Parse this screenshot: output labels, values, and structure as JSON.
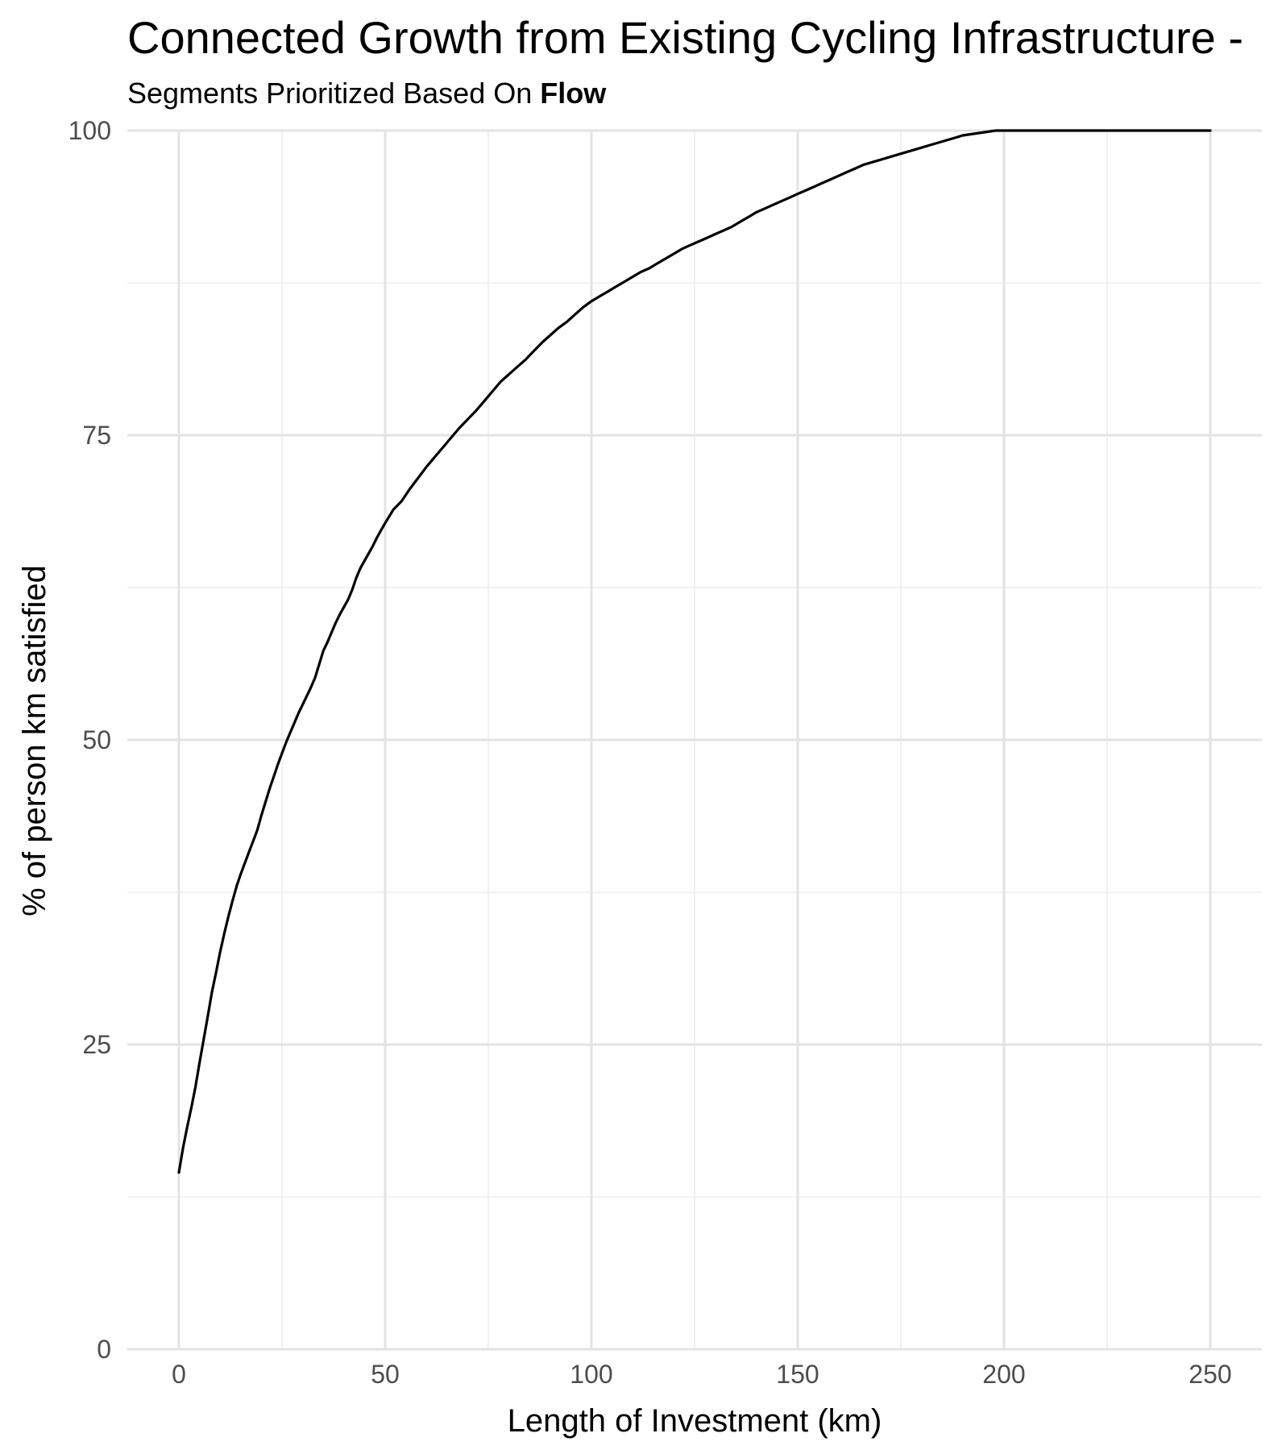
{
  "chart_data": {
    "type": "line",
    "title": "Connected Growth from Existing Cycling Infrastructure -",
    "subtitle": {
      "prefix": "Segments Prioritized Based On ",
      "emphasis": "Flow"
    },
    "xlabel": "Length of Investment (km)",
    "ylabel": "% of person km satisfied",
    "xlim": [
      -12.5,
      262.5
    ],
    "ylim": [
      0,
      100
    ],
    "x_ticks": [
      0,
      50,
      100,
      150,
      200,
      250
    ],
    "y_ticks": [
      0,
      25,
      50,
      75,
      100
    ],
    "x_tick_labels": [
      "0",
      "50",
      "100",
      "150",
      "200",
      "250"
    ],
    "y_tick_labels": [
      "0",
      "25",
      "50",
      "75",
      "100"
    ],
    "grid": true,
    "line_color": "#000000",
    "series": [
      {
        "x": [
          0,
          1,
          2,
          3,
          4,
          5,
          6,
          7,
          8,
          9,
          10,
          11,
          12,
          13,
          14,
          15,
          16,
          17,
          18,
          19,
          20,
          21,
          22,
          23,
          24,
          25,
          26,
          27,
          28,
          29,
          30,
          31,
          32,
          33,
          34,
          35,
          36,
          37,
          38,
          39,
          40,
          41,
          42,
          43,
          44,
          45,
          46,
          47,
          48,
          49,
          50,
          52,
          54,
          56,
          58,
          60,
          62,
          64,
          66,
          68,
          70,
          72,
          74,
          76,
          78,
          80,
          82,
          84,
          86,
          88,
          90,
          92,
          94,
          96,
          98,
          100,
          102,
          104,
          106,
          108,
          110,
          112,
          114,
          116,
          118,
          120,
          122,
          124,
          126,
          128,
          130,
          132,
          134,
          136,
          138,
          140,
          142,
          144,
          146,
          148,
          150,
          152,
          154,
          156,
          158,
          160,
          162,
          164,
          166,
          168,
          170,
          172,
          174,
          176,
          178,
          180,
          182,
          184,
          186,
          188,
          190,
          192,
          194,
          196,
          198,
          200,
          202,
          204,
          206,
          208,
          210,
          212,
          214,
          216,
          218,
          220,
          222,
          224,
          226,
          228,
          230,
          232,
          234,
          236,
          238,
          240,
          242,
          244,
          246,
          248,
          250
        ],
        "values": [
          14.5,
          16.5,
          18.2,
          19.8,
          21.5,
          23.5,
          25.4,
          27.3,
          29.3,
          30.9,
          32.6,
          34.1,
          35.5,
          36.8,
          38.0,
          39.0,
          39.9,
          40.8,
          41.7,
          42.6,
          43.8,
          44.9,
          46.0,
          47.0,
          48.0,
          48.9,
          49.8,
          50.6,
          51.4,
          52.2,
          52.9,
          53.6,
          54.3,
          55.1,
          56.2,
          57.3,
          58.0,
          58.8,
          59.6,
          60.3,
          60.9,
          61.5,
          62.3,
          63.3,
          64.1,
          64.7,
          65.3,
          65.9,
          66.6,
          67.2,
          67.8,
          68.9,
          69.6,
          70.6,
          71.5,
          72.4,
          73.2,
          74.0,
          74.8,
          75.6,
          76.3,
          77.0,
          77.8,
          78.6,
          79.4,
          80.0,
          80.6,
          81.2,
          81.9,
          82.6,
          83.2,
          83.8,
          84.3,
          84.9,
          85.5,
          86.0,
          86.4,
          86.8,
          87.2,
          87.6,
          88.0,
          88.4,
          88.7,
          89.1,
          89.5,
          89.9,
          90.3,
          90.6,
          90.9,
          91.2,
          91.5,
          91.8,
          92.1,
          92.5,
          92.9,
          93.3,
          93.6,
          93.9,
          94.2,
          94.5,
          94.8,
          95.1,
          95.4,
          95.7,
          96.0,
          96.3,
          96.6,
          96.9,
          97.2,
          97.4,
          97.6,
          97.8,
          98.0,
          98.2,
          98.4,
          98.6,
          98.8,
          99.0,
          99.2,
          99.4,
          99.6,
          99.7,
          99.8,
          99.9,
          100.0,
          100.0,
          100.0,
          100.0,
          100.0,
          100.0,
          100.0,
          100.0,
          100.0,
          100.0,
          100.0,
          100.0,
          100.0,
          100.0,
          100.0,
          100.0,
          100.0,
          100.0,
          100.0,
          100.0,
          100.0,
          100.0,
          100.0,
          100.0,
          100.0,
          100.0,
          100.0
        ]
      }
    ]
  }
}
